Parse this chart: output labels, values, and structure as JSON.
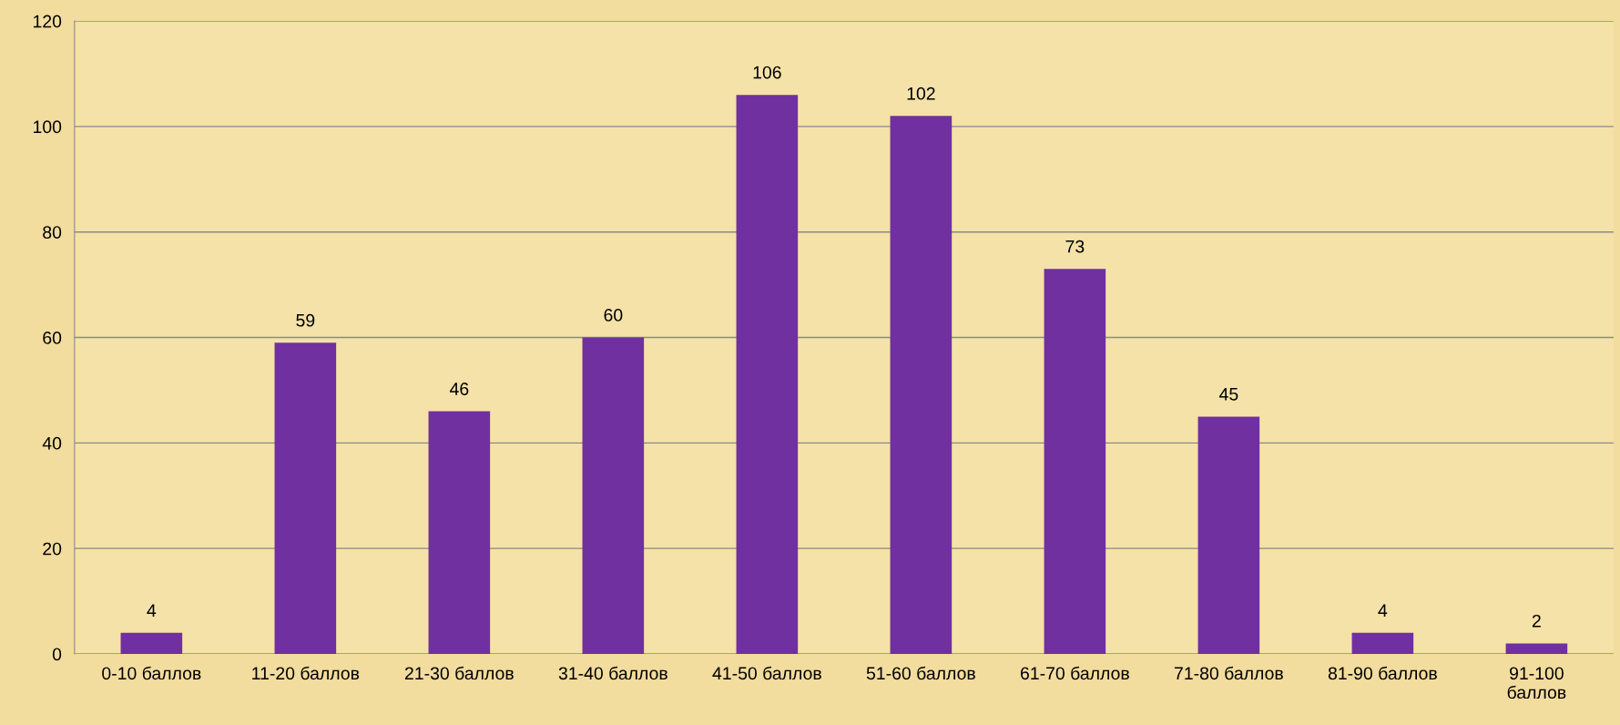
{
  "chart_data": {
    "type": "bar",
    "categories": [
      "0-10 баллов",
      "11-20 баллов",
      "21-30 баллов",
      "31-40 баллов",
      "41-50 баллов",
      "51-60 баллов",
      "61-70 баллов",
      "71-80 баллов",
      "81-90 баллов",
      "91-100 баллов"
    ],
    "values": [
      4,
      59,
      46,
      60,
      106,
      102,
      73,
      45,
      4,
      2
    ],
    "color": "#7030a0",
    "ylim": [
      0,
      120
    ],
    "yticks": [
      0,
      20,
      40,
      60,
      80,
      100,
      120
    ],
    "grid": "y",
    "data_labels": true,
    "legend": false
  }
}
